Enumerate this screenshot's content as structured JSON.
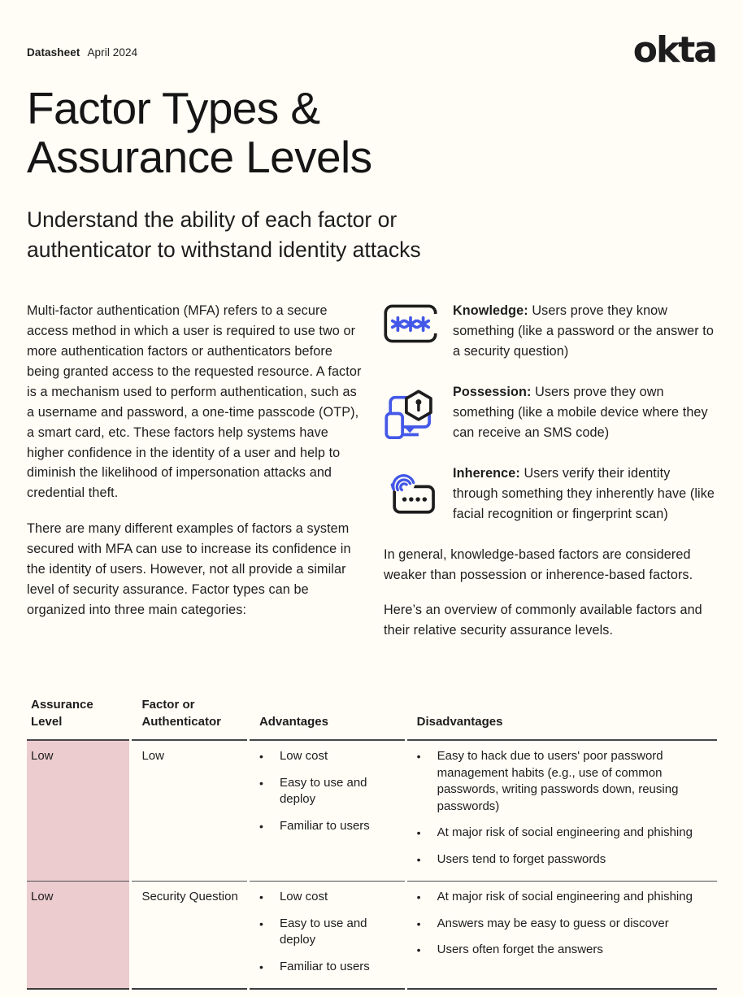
{
  "page": {
    "colors": {
      "bg": "#FFFDF6",
      "ink": "#1E1D1D",
      "blue": "#4358E8",
      "pink": "#ECCCCF"
    }
  },
  "topbar": {
    "doc_type": "Datasheet",
    "date": "April 2024",
    "logo": "okta"
  },
  "title_lines": [
    "Factor Types &",
    "Assurance Levels"
  ],
  "subtitle": "Understand the ability of each factor or authenticator to withstand identity attacks",
  "intro": {
    "paragraphs": [
      "Multi-factor authentication (MFA) refers to a secure access method in which a user is required to use two or more authentication factors or authenticators before being granted access to the requested resource. A factor is a mechanism used to perform authentication, such as a username and password, a one-time passcode (OTP), a smart card, etc. These factors help systems have higher confidence in the identity of a user and help to diminish the likelihood of impersonation attacks and credential theft.",
      "There are many different examples of factors a system secured with MFA can use to increase its confidence in the identity of users. However, not all provide a similar level of security assurance. Factor types can be organized into three main categories:"
    ]
  },
  "factors": [
    {
      "icon": "password-asterisks-icon",
      "term": "Knowledge:",
      "desc": " Users prove they know something (like a password or the answer to a security question)"
    },
    {
      "icon": "devices-lock-icon",
      "term": "Possession:",
      "desc": " Users prove they own something (like a mobile device where they can receive an SMS code)"
    },
    {
      "icon": "fingerprint-passcode-icon",
      "term": "Inherence:",
      "desc": " Users verify their identity through something they inherently have (like facial recognition or fingerprint scan)"
    }
  ],
  "closing_paragraphs": [
    "In general, knowledge-based factors are considered weaker than possession or inherence-based factors.",
    "Here’s an overview of commonly available factors and their relative security assurance levels."
  ],
  "table": {
    "headers": [
      "Assurance Level",
      "Factor or Authenticator",
      "Advantages",
      "Disadvantages"
    ],
    "rows": [
      {
        "assurance_level": "Low",
        "factor": "Low",
        "advantages": [
          "Low cost",
          "Easy to use and deploy",
          "Familiar to users"
        ],
        "disadvantages": [
          "Easy to hack due to users' poor password management habits (e.g., use of common passwords, writing passwords down, reusing passwords)",
          "At major risk of social engineering and phishing",
          "Users tend to forget passwords"
        ]
      },
      {
        "assurance_level": "Low",
        "factor": "Security Question",
        "advantages": [
          "Low cost",
          "Easy to use and deploy",
          "Familiar to users"
        ],
        "disadvantages": [
          "At major risk of social engineering and phishing",
          "Answers may be easy to guess or discover",
          "Users often forget the answers"
        ]
      }
    ]
  }
}
